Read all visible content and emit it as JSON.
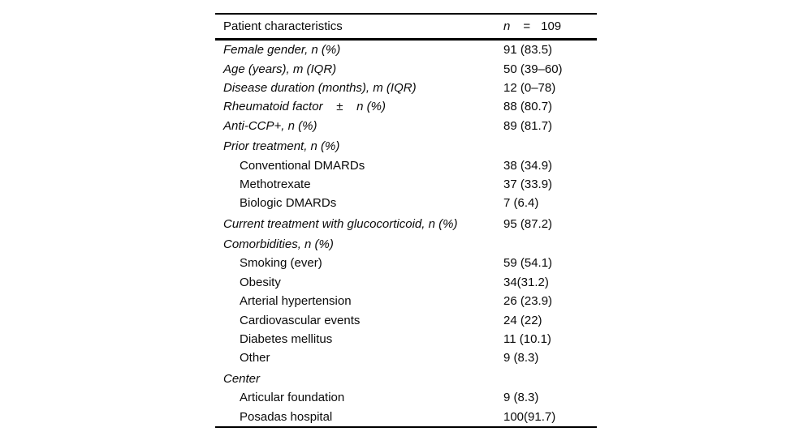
{
  "table": {
    "header": {
      "label": "Patient characteristics",
      "n_symbol": "n",
      "equals": "=",
      "n_value": "109"
    },
    "rows": [
      {
        "label": "Female gender, n (%)",
        "value": "91 (83.5)",
        "italic": true,
        "indent": false,
        "gap": false
      },
      {
        "label": "Age (years), m (IQR)",
        "value": "50 (39–60)",
        "italic": true,
        "indent": false,
        "gap": false
      },
      {
        "label": "Disease duration (months), m (IQR)",
        "value": "12 (0–78)",
        "italic": true,
        "indent": false,
        "gap": false
      },
      {
        "label": "Rheumatoid factor    ±    n (%)",
        "value": "88 (80.7)",
        "italic": true,
        "indent": false,
        "gap": false
      },
      {
        "label": "Anti-CCP+, n (%)",
        "value": "89 (81.7)",
        "italic": true,
        "indent": false,
        "gap": false
      },
      {
        "label": "Prior treatment, n (%)",
        "value": "",
        "italic": true,
        "indent": false,
        "gap": true
      },
      {
        "label": "Conventional DMARDs",
        "value": "38 (34.9)",
        "italic": false,
        "indent": true,
        "gap": false
      },
      {
        "label": "Methotrexate",
        "value": "37 (33.9)",
        "italic": false,
        "indent": true,
        "gap": false
      },
      {
        "label": "Biologic DMARDs",
        "value": "7 (6.4)",
        "italic": false,
        "indent": true,
        "gap": false
      },
      {
        "label": "Current treatment with glucocorticoid, n (%)",
        "value": "95 (87.2)",
        "italic": true,
        "indent": false,
        "gap": true
      },
      {
        "label": "Comorbidities, n (%)",
        "value": "",
        "italic": true,
        "indent": false,
        "gap": true
      },
      {
        "label": "Smoking (ever)",
        "value": "59 (54.1)",
        "italic": false,
        "indent": true,
        "gap": false
      },
      {
        "label": "Obesity",
        "value": "34(31.2)",
        "italic": false,
        "indent": true,
        "gap": false
      },
      {
        "label": "Arterial hypertension",
        "value": "26 (23.9)",
        "italic": false,
        "indent": true,
        "gap": false
      },
      {
        "label": "Cardiovascular events",
        "value": "24 (22)",
        "italic": false,
        "indent": true,
        "gap": false
      },
      {
        "label": "Diabetes mellitus",
        "value": "11 (10.1)",
        "italic": false,
        "indent": true,
        "gap": false
      },
      {
        "label": "Other",
        "value": "9 (8.3)",
        "italic": false,
        "indent": true,
        "gap": false
      },
      {
        "label": "Center",
        "value": "",
        "italic": true,
        "indent": false,
        "gap": true
      },
      {
        "label": "Articular foundation",
        "value": "9 (8.3)",
        "italic": false,
        "indent": true,
        "gap": false
      },
      {
        "label": "Posadas hospital",
        "value": "100(91.7)",
        "italic": false,
        "indent": true,
        "gap": false
      }
    ]
  }
}
